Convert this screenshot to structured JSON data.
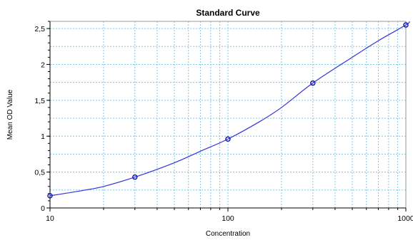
{
  "chart_data": {
    "type": "scatter",
    "title": "Standard Curve",
    "xlabel": "Concentration",
    "ylabel": "Mean OD Value",
    "x_scale": "log",
    "xlim": [
      10,
      1000
    ],
    "ylim": [
      0,
      2.6
    ],
    "x_ticks": [
      10,
      100,
      1000
    ],
    "x_tick_labels": [
      "10",
      "100",
      "1000"
    ],
    "y_ticks": [
      0,
      0.5,
      1,
      1.5,
      2,
      2.5
    ],
    "y_tick_labels": [
      "0",
      "0,5",
      "1",
      "1,5",
      "2",
      "2,5"
    ],
    "grid": true,
    "legend": false,
    "series": [
      {
        "kind": "points",
        "x": [
          10,
          30,
          100,
          300,
          1000
        ],
        "y": [
          0.17,
          0.43,
          0.96,
          1.74,
          2.55
        ]
      },
      {
        "kind": "fit_curve",
        "x": [
          10,
          15,
          20,
          30,
          50,
          70,
          100,
          150,
          200,
          300,
          500,
          700,
          1000,
          1050
        ],
        "y": [
          0.17,
          0.24,
          0.3,
          0.43,
          0.63,
          0.79,
          0.96,
          1.2,
          1.4,
          1.74,
          2.1,
          2.33,
          2.55,
          2.6
        ]
      }
    ],
    "colors": {
      "curve": "#3333dd",
      "points": "#1a1aaa",
      "grid": "#7ec8e8",
      "axis": "#000000",
      "frame": "#999999"
    }
  }
}
